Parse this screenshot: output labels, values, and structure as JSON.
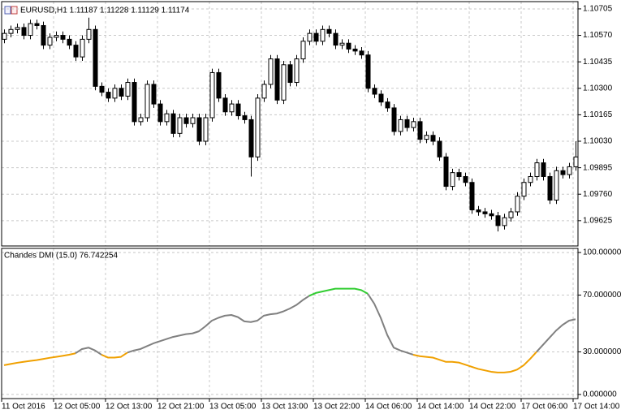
{
  "chart_data": [
    {
      "type": "candlestick",
      "title": "EURUSD,H1  1.11187 1.11228 1.11129 1.11174",
      "grid": true,
      "up_color": "#ffffff",
      "down_color": "#000000",
      "ylim": [
        1.09496,
        1.10742
      ],
      "yticks": [
        {
          "value": 1.10705,
          "label": "1.10705"
        },
        {
          "value": 1.1057,
          "label": "1.10570"
        },
        {
          "value": 1.10435,
          "label": "1.10435"
        },
        {
          "value": 1.103,
          "label": "1.10300"
        },
        {
          "value": 1.10165,
          "label": "1.10165"
        },
        {
          "value": 1.1003,
          "label": "1.10030"
        },
        {
          "value": 1.09895,
          "label": "1.09895"
        },
        {
          "value": 1.0976,
          "label": "1.09760"
        },
        {
          "value": 1.09625,
          "label": "1.09625"
        }
      ],
      "open": [
        1.1055,
        1.1058,
        1.106,
        1.1061,
        1.1057,
        1.1063,
        1.1062,
        1.1052,
        1.1056,
        1.1057,
        1.1055,
        1.1052,
        1.1046,
        1.1055,
        1.106,
        1.1031,
        1.1028,
        1.1025,
        1.103,
        1.1026,
        1.1033,
        1.1013,
        1.1015,
        1.1032,
        1.1022,
        1.1013,
        1.1017,
        1.1007,
        1.1015,
        1.1012,
        1.1015,
        1.1003,
        1.1015,
        1.1038,
        1.1025,
        1.1018,
        1.1022,
        1.1016,
        1.1014,
        1.0995,
        1.1025,
        1.1032,
        1.1045,
        1.1024,
        1.1042,
        1.1033,
        1.1045,
        1.1054,
        1.1058,
        1.1054,
        1.106,
        1.1058,
        1.1052,
        1.1053,
        1.105,
        1.1049,
        1.1047,
        1.103,
        1.1027,
        1.1023,
        1.102,
        1.1008,
        1.1014,
        1.101,
        1.1013,
        1.1004,
        1.1006,
        1.1003,
        1.0995,
        1.098,
        1.0987,
        1.0985,
        1.0982,
        1.0968,
        1.0967,
        1.0966,
        1.0965,
        1.096,
        1.0964,
        1.0967,
        1.0975,
        1.0982,
        1.0985,
        1.0992,
        1.0985,
        1.0973,
        1.0988,
        1.0986,
        1.099
      ],
      "high": [
        1.106,
        1.1062,
        1.1063,
        1.1063,
        1.1065,
        1.1065,
        1.1064,
        1.1058,
        1.1059,
        1.1059,
        1.1057,
        1.1054,
        1.1057,
        1.1066,
        1.1062,
        1.1033,
        1.103,
        1.1032,
        1.1032,
        1.1035,
        1.1035,
        1.1017,
        1.1034,
        1.1034,
        1.1024,
        1.1019,
        1.1019,
        1.1017,
        1.1017,
        1.1017,
        1.1017,
        1.1017,
        1.104,
        1.104,
        1.1027,
        1.1024,
        1.1024,
        1.1018,
        1.1016,
        1.1027,
        1.1034,
        1.1047,
        1.1047,
        1.1044,
        1.1044,
        1.1047,
        1.1056,
        1.106,
        1.106,
        1.1062,
        1.1062,
        1.106,
        1.1055,
        1.1055,
        1.1052,
        1.1051,
        1.1049,
        1.1032,
        1.1029,
        1.1025,
        1.1022,
        1.1016,
        1.1016,
        1.1015,
        1.1015,
        1.1008,
        1.1008,
        1.1005,
        1.0997,
        1.0989,
        1.0989,
        1.0987,
        1.0984,
        1.097,
        1.0969,
        1.0968,
        1.0967,
        1.0966,
        1.0969,
        1.0977,
        1.0984,
        1.0987,
        1.0994,
        1.0994,
        1.0987,
        1.099,
        1.099,
        1.0992,
        1.1003
      ],
      "low": [
        1.1053,
        1.1056,
        1.1058,
        1.1055,
        1.1055,
        1.106,
        1.105,
        1.105,
        1.1054,
        1.1053,
        1.105,
        1.1044,
        1.1044,
        1.1053,
        1.1029,
        1.1026,
        1.1023,
        1.1023,
        1.1024,
        1.1024,
        1.1011,
        1.1011,
        1.1013,
        1.102,
        1.1011,
        1.1011,
        1.1005,
        1.1005,
        1.101,
        1.101,
        1.1001,
        1.1001,
        1.1013,
        1.1023,
        1.1016,
        1.1016,
        1.1014,
        1.1012,
        1.0985,
        1.0993,
        1.1023,
        1.103,
        1.1022,
        1.1022,
        1.1031,
        1.1031,
        1.1043,
        1.1052,
        1.1052,
        1.1052,
        1.1056,
        1.105,
        1.105,
        1.1048,
        1.1047,
        1.1045,
        1.1028,
        1.1025,
        1.1021,
        1.1018,
        1.1006,
        1.1006,
        1.1008,
        1.1008,
        1.1002,
        1.1002,
        1.1001,
        1.0993,
        1.0978,
        1.0978,
        1.0983,
        1.098,
        1.0966,
        1.0965,
        1.0964,
        1.0963,
        1.0957,
        1.0958,
        1.0962,
        1.0965,
        1.0973,
        1.098,
        1.0983,
        1.0983,
        1.0971,
        1.0971,
        1.0984,
        1.0984,
        1.0988
      ],
      "close": [
        1.1058,
        1.106,
        1.1061,
        1.1057,
        1.1063,
        1.1062,
        1.1052,
        1.1056,
        1.1057,
        1.1055,
        1.1052,
        1.1046,
        1.1055,
        1.106,
        1.1031,
        1.1028,
        1.1025,
        1.103,
        1.1026,
        1.1033,
        1.1013,
        1.1015,
        1.1032,
        1.1022,
        1.1013,
        1.1017,
        1.1007,
        1.1015,
        1.1012,
        1.1015,
        1.1003,
        1.1015,
        1.1038,
        1.1025,
        1.1018,
        1.1022,
        1.1016,
        1.1014,
        1.0995,
        1.1025,
        1.1032,
        1.1045,
        1.1024,
        1.1042,
        1.1033,
        1.1045,
        1.1054,
        1.1058,
        1.1054,
        1.106,
        1.1058,
        1.1052,
        1.1053,
        1.105,
        1.1049,
        1.1047,
        1.103,
        1.1027,
        1.1023,
        1.102,
        1.1008,
        1.1014,
        1.101,
        1.1013,
        1.1004,
        1.1006,
        1.1003,
        1.0995,
        1.098,
        1.0987,
        1.0985,
        1.0982,
        1.0968,
        1.0967,
        1.0966,
        1.0965,
        1.096,
        1.0964,
        1.0967,
        1.0975,
        1.0982,
        1.0985,
        1.0992,
        1.0985,
        1.0973,
        1.0988,
        1.0986,
        1.099,
        1.0995
      ]
    },
    {
      "type": "line",
      "title": "Chandes DMI (15.0) 76.742254",
      "grid": true,
      "ylim": [
        -2.9,
        102.9
      ],
      "yticks": [
        {
          "value": 100,
          "label": "100.000000"
        },
        {
          "value": 70,
          "label": "70.000000"
        },
        {
          "value": 30,
          "label": "30.000000"
        },
        {
          "value": 0,
          "label": "0.000000"
        }
      ],
      "categories": [
        "11 Oct 2016",
        null,
        null,
        null,
        null,
        null,
        null,
        null,
        "12 Oct 05:00",
        null,
        null,
        null,
        null,
        null,
        null,
        null,
        "12 Oct 13:00",
        null,
        null,
        null,
        null,
        null,
        null,
        null,
        "12 Oct 21:00",
        null,
        null,
        null,
        null,
        null,
        null,
        null,
        "13 Oct 05:00",
        null,
        null,
        null,
        null,
        null,
        null,
        null,
        "13 Oct 13:00",
        null,
        null,
        null,
        null,
        null,
        null,
        null,
        "13 Oct 22:00",
        null,
        null,
        null,
        null,
        null,
        null,
        null,
        "14 Oct 06:00",
        null,
        null,
        null,
        null,
        null,
        null,
        null,
        "14 Oct 14:00",
        null,
        null,
        null,
        null,
        null,
        null,
        null,
        "14 Oct 22:00",
        null,
        null,
        null,
        null,
        null,
        null,
        null,
        "17 Oct 06:00",
        null,
        null,
        null,
        null,
        null,
        null,
        null,
        "17 Oct 14:00"
      ],
      "series": [
        {
          "color": "#808080",
          "values": [
            null,
            null,
            null,
            null,
            null,
            null,
            null,
            null,
            null,
            null,
            null,
            29,
            32,
            33,
            31,
            28,
            null,
            null,
            null,
            29.5,
            31,
            32,
            34,
            36,
            37.5,
            39,
            40.5,
            41.5,
            42.5,
            43,
            44.5,
            48,
            52,
            54,
            55.5,
            56,
            54.5,
            51.5,
            51,
            52,
            55.5,
            56.5,
            57,
            58.5,
            60.5,
            63,
            66.5,
            69.5,
            null,
            null,
            null,
            null,
            null,
            null,
            null,
            null,
            71,
            64,
            54,
            42,
            33,
            31,
            29.5,
            28,
            null,
            null,
            null,
            null,
            null,
            null,
            null,
            null,
            null,
            null,
            null,
            null,
            null,
            null,
            null,
            null,
            null,
            null,
            30,
            35,
            40,
            45,
            49,
            52,
            53
          ]
        },
        {
          "color": "#f0a000",
          "values": [
            20.6,
            21.5,
            22.3,
            23,
            23.6,
            24.2,
            25,
            25.8,
            26.5,
            27.2,
            28,
            29,
            null,
            null,
            null,
            28,
            26,
            26,
            26.5,
            29.5,
            null,
            null,
            null,
            null,
            null,
            null,
            null,
            null,
            null,
            null,
            null,
            null,
            null,
            null,
            null,
            null,
            null,
            null,
            null,
            null,
            null,
            null,
            null,
            null,
            null,
            null,
            null,
            null,
            null,
            null,
            null,
            null,
            null,
            null,
            null,
            null,
            null,
            null,
            null,
            null,
            null,
            null,
            null,
            28,
            27,
            26.5,
            26,
            24.5,
            23,
            23,
            22.5,
            21,
            19.5,
            18,
            17,
            16,
            15.5,
            15.5,
            16,
            17.5,
            20.5,
            25,
            30,
            null,
            null,
            null,
            null,
            null,
            null
          ]
        },
        {
          "color": "#32cd32",
          "values": [
            null,
            null,
            null,
            null,
            null,
            null,
            null,
            null,
            null,
            null,
            null,
            null,
            null,
            null,
            null,
            null,
            null,
            null,
            null,
            null,
            null,
            null,
            null,
            null,
            null,
            null,
            null,
            null,
            null,
            null,
            null,
            null,
            null,
            null,
            null,
            null,
            null,
            null,
            null,
            null,
            null,
            null,
            null,
            null,
            null,
            null,
            null,
            69.5,
            71.5,
            72.5,
            73.5,
            74.5,
            74.5,
            74.5,
            74.5,
            73.5,
            71,
            null,
            null,
            null,
            null,
            null,
            null,
            null,
            null,
            null,
            null,
            null,
            null,
            null,
            null,
            null,
            null,
            null,
            null,
            null,
            null,
            null,
            null,
            null,
            null,
            null,
            null,
            null,
            null,
            null,
            null,
            null,
            null
          ]
        }
      ]
    }
  ]
}
